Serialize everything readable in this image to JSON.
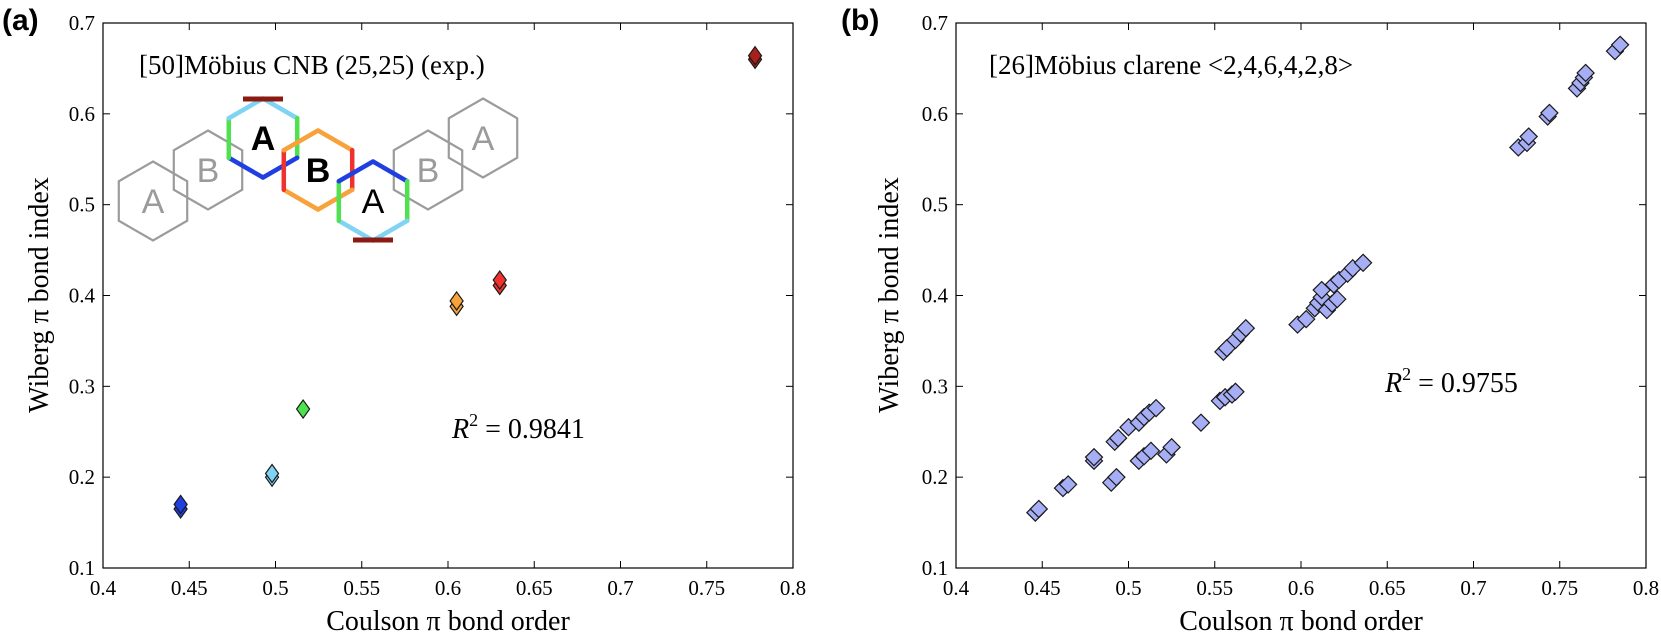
{
  "chart_data": [
    {
      "type": "scatter",
      "panel_label": "(a)",
      "annotation": "[50]Möbius CNB (25,25) (exp.)",
      "r2_label": "R",
      "r2_sup": "2",
      "r2_value": " = 0.9841",
      "xlabel": "Coulson π bond order",
      "ylabel": "Wiberg π bond index",
      "xlim": [
        0.4,
        0.8
      ],
      "ylim": [
        0.1,
        0.7
      ],
      "xticks": [
        "0.4",
        "0.45",
        "0.5",
        "0.55",
        "0.6",
        "0.65",
        "0.7",
        "0.75",
        "0.8"
      ],
      "yticks": [
        "0.1",
        "0.2",
        "0.3",
        "0.4",
        "0.5",
        "0.6",
        "0.7"
      ],
      "grid": false,
      "points": [
        {
          "x": 0.445,
          "y": 0.165,
          "color": "#1f3fe0"
        },
        {
          "x": 0.445,
          "y": 0.17,
          "color": "#1f3fe0"
        },
        {
          "x": 0.498,
          "y": 0.2,
          "color": "#7fd4f3"
        },
        {
          "x": 0.498,
          "y": 0.204,
          "color": "#7fd4f3"
        },
        {
          "x": 0.516,
          "y": 0.275,
          "color": "#4fe14f"
        },
        {
          "x": 0.605,
          "y": 0.388,
          "color": "#f7a23a"
        },
        {
          "x": 0.605,
          "y": 0.394,
          "color": "#f7a23a"
        },
        {
          "x": 0.63,
          "y": 0.411,
          "color": "#f0322f"
        },
        {
          "x": 0.63,
          "y": 0.417,
          "color": "#f0322f"
        },
        {
          "x": 0.778,
          "y": 0.66,
          "color": "#a8201c"
        },
        {
          "x": 0.778,
          "y": 0.664,
          "color": "#a8201c"
        }
      ],
      "inset": {
        "labels": [
          "A",
          "B",
          "A",
          "B",
          "A",
          "B",
          "A"
        ],
        "colors": {
          "grey": "#9b9b9b",
          "sky": "#7fd4f3",
          "green": "#4fe14f",
          "blue": "#1f3fe0",
          "orange": "#f7a23a",
          "red": "#f0322f",
          "dark_red": "#8b1a12"
        }
      }
    },
    {
      "type": "scatter",
      "panel_label": "(b)",
      "annotation": "[26]Möbius clarene <2,4,6,4,2,8>",
      "r2_label": "R",
      "r2_sup": "2",
      "r2_value": " = 0.9755",
      "xlabel": "Coulson π bond order",
      "ylabel": "Wiberg π bond index",
      "xlim": [
        0.4,
        0.8
      ],
      "ylim": [
        0.1,
        0.7
      ],
      "xticks": [
        "0.4",
        "0.45",
        "0.5",
        "0.55",
        "0.6",
        "0.65",
        "0.7",
        "0.75",
        "0.8"
      ],
      "yticks": [
        "0.1",
        "0.2",
        "0.3",
        "0.4",
        "0.5",
        "0.6",
        "0.7"
      ],
      "grid": false,
      "marker_color": "#a6aef6",
      "points": [
        {
          "x": 0.446,
          "y": 0.161
        },
        {
          "x": 0.448,
          "y": 0.165
        },
        {
          "x": 0.462,
          "y": 0.188
        },
        {
          "x": 0.465,
          "y": 0.192
        },
        {
          "x": 0.48,
          "y": 0.218
        },
        {
          "x": 0.48,
          "y": 0.222
        },
        {
          "x": 0.49,
          "y": 0.194
        },
        {
          "x": 0.493,
          "y": 0.2
        },
        {
          "x": 0.492,
          "y": 0.239
        },
        {
          "x": 0.494,
          "y": 0.243
        },
        {
          "x": 0.5,
          "y": 0.255
        },
        {
          "x": 0.506,
          "y": 0.218
        },
        {
          "x": 0.509,
          "y": 0.223
        },
        {
          "x": 0.513,
          "y": 0.229
        },
        {
          "x": 0.506,
          "y": 0.26
        },
        {
          "x": 0.509,
          "y": 0.266
        },
        {
          "x": 0.512,
          "y": 0.271
        },
        {
          "x": 0.516,
          "y": 0.276
        },
        {
          "x": 0.522,
          "y": 0.225
        },
        {
          "x": 0.525,
          "y": 0.233
        },
        {
          "x": 0.542,
          "y": 0.26
        },
        {
          "x": 0.553,
          "y": 0.284
        },
        {
          "x": 0.556,
          "y": 0.288
        },
        {
          "x": 0.56,
          "y": 0.291
        },
        {
          "x": 0.562,
          "y": 0.294
        },
        {
          "x": 0.555,
          "y": 0.338
        },
        {
          "x": 0.557,
          "y": 0.342
        },
        {
          "x": 0.562,
          "y": 0.351
        },
        {
          "x": 0.565,
          "y": 0.358
        },
        {
          "x": 0.568,
          "y": 0.364
        },
        {
          "x": 0.598,
          "y": 0.368
        },
        {
          "x": 0.603,
          "y": 0.374
        },
        {
          "x": 0.608,
          "y": 0.386
        },
        {
          "x": 0.61,
          "y": 0.392
        },
        {
          "x": 0.612,
          "y": 0.398
        },
        {
          "x": 0.615,
          "y": 0.384
        },
        {
          "x": 0.618,
          "y": 0.391
        },
        {
          "x": 0.621,
          "y": 0.396
        },
        {
          "x": 0.612,
          "y": 0.406
        },
        {
          "x": 0.619,
          "y": 0.412
        },
        {
          "x": 0.622,
          "y": 0.417
        },
        {
          "x": 0.627,
          "y": 0.424
        },
        {
          "x": 0.63,
          "y": 0.43
        },
        {
          "x": 0.636,
          "y": 0.436
        },
        {
          "x": 0.726,
          "y": 0.563
        },
        {
          "x": 0.731,
          "y": 0.568
        },
        {
          "x": 0.732,
          "y": 0.575
        },
        {
          "x": 0.743,
          "y": 0.597
        },
        {
          "x": 0.744,
          "y": 0.601
        },
        {
          "x": 0.76,
          "y": 0.628
        },
        {
          "x": 0.762,
          "y": 0.634
        },
        {
          "x": 0.764,
          "y": 0.64
        },
        {
          "x": 0.765,
          "y": 0.645
        },
        {
          "x": 0.782,
          "y": 0.669
        },
        {
          "x": 0.785,
          "y": 0.676
        }
      ]
    }
  ]
}
